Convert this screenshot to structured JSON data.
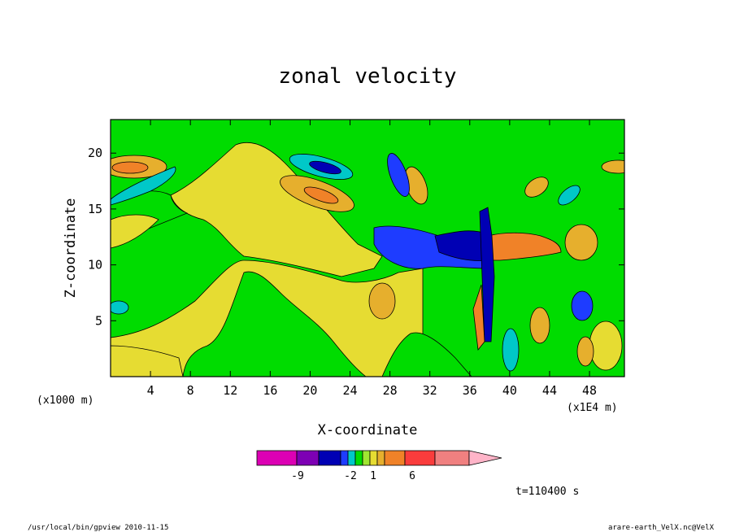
{
  "chart_data": {
    "type": "heatmap",
    "title": "zonal velocity",
    "xlabel": "X-coordinate",
    "ylabel": "Z-coordinate",
    "x_unit_left": "(x1000 m)",
    "x_unit_right": "(x1E4 m)",
    "xlim": [
      0,
      51.5
    ],
    "ylim": [
      0,
      23
    ],
    "x_ticks": [
      "4",
      "8",
      "12",
      "16",
      "20",
      "24",
      "28",
      "32",
      "36",
      "40",
      "44",
      "48"
    ],
    "y_ticks": [
      "5",
      "10",
      "15",
      "20"
    ],
    "colorbar": {
      "colors": [
        "#dc00b4",
        "#7d00b4",
        "#0000b4",
        "#1e3cff",
        "#00c8c8",
        "#00dc00",
        "#a0e632",
        "#e6dc32",
        "#e6af2d",
        "#f08228",
        "#fa3c3c",
        "#f08080",
        "#ffb4c8"
      ],
      "labels": [
        "-9",
        "-2",
        "1",
        "6"
      ],
      "label_positions": [
        -9,
        -2,
        1,
        6
      ]
    },
    "time_label": "t=110400 s",
    "footer_left": "/usr/local/bin/gpview   2010-11-15",
    "footer_right": "arare-earth_VelX.nc@VelX"
  }
}
